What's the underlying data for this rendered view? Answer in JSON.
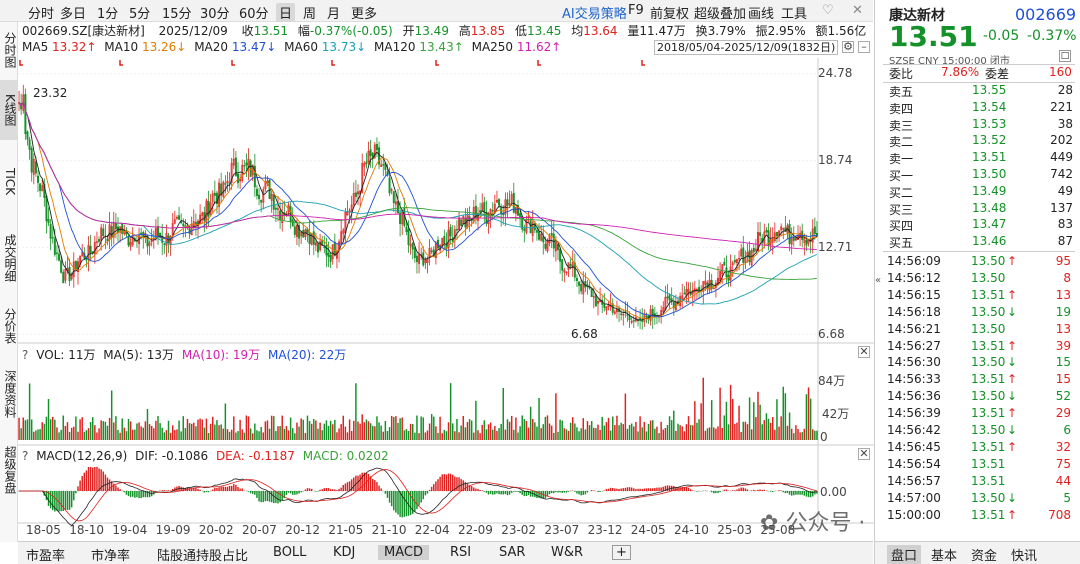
{
  "toolbar": {
    "items": [
      "分时",
      "多日",
      "1分",
      "5分",
      "15分",
      "30分",
      "60分",
      "日",
      "周",
      "月",
      "更多"
    ],
    "active": "日",
    "ai": "AI交易策略",
    "f9": "F9",
    "fuquan": "前复权",
    "overlay": "超级叠加",
    "drawline": "画线",
    "tools": "工具",
    "heart_icon": "heart-icon",
    "close_icon": "close-icon"
  },
  "vtabs": [
    "分时图",
    "K线图",
    "TICK",
    "成交明细",
    "分价表",
    "深度资料",
    "超级复盘"
  ],
  "info": {
    "code_name": "002669.SZ[康达新材]",
    "date": "2025/12/09",
    "close_label": "收",
    "close": "13.51",
    "change_label": "幅",
    "change": "-0.37%(-0.05)",
    "open_label": "开",
    "open": "13.49",
    "high_label": "高",
    "high": "13.85",
    "low_label": "低",
    "low": "13.45",
    "avg_label": "均",
    "avg": "13.64",
    "vol_label": "量",
    "vol": "11.47万",
    "turnover_label": "换",
    "turnover": "3.79%",
    "amp_label": "振",
    "amp": "2.95%",
    "amount_label": "额",
    "amount": "1.56亿"
  },
  "ma": {
    "ma5_label": "MA5",
    "ma5": "13.32↑",
    "ma10_label": "MA10",
    "ma10": "13.26↓",
    "ma20_label": "MA20",
    "ma20": "13.47↓",
    "ma60_label": "MA60",
    "ma60": "13.73↓",
    "ma120_label": "MA120",
    "ma120": "13.43↑",
    "ma250_label": "MA250",
    "ma250": "11.62↑",
    "range": "2018/05/04-2025/12/09(1832日)"
  },
  "price_axis": [
    "24.78",
    "18.74",
    "12.71",
    "6.68"
  ],
  "annotations": {
    "high": "23.32",
    "low": "6.68"
  },
  "vol": {
    "label": "VOL: 11万",
    "ma5": "MA(5): 13万",
    "ma10": "MA(10): 19万",
    "ma20": "MA(20): 22万",
    "axis": [
      "84万",
      "42万",
      "0"
    ]
  },
  "macd": {
    "label": "MACD(12,26,9)",
    "dif": "DIF: -0.1086",
    "dea": "DEA: -0.1187",
    "macd": "MACD: 0.0202",
    "axis": "0.00"
  },
  "x_axis": [
    "18-05",
    "18-10",
    "19-04",
    "19-09",
    "20-02",
    "20-07",
    "20-12",
    "21-05",
    "21-10",
    "22-04",
    "22-09",
    "23-02",
    "23-07",
    "23-12",
    "24-05",
    "24-10",
    "25-03",
    "25-08"
  ],
  "bottom_tabs": [
    "市盈率",
    "市净率",
    "陆股通持股占比",
    "BOLL",
    "KDJ",
    "MACD",
    "RSI",
    "SAR",
    "W&R",
    "+"
  ],
  "bottom_active": "MACD",
  "right": {
    "name": "康达新材",
    "code": "002669",
    "price": "13.51",
    "change": "-0.05",
    "pct": "-0.37%",
    "market": "SZSE  CNY  15:00:00  闭市",
    "weibi_label": "委比",
    "weibi": "7.86%",
    "weicha_label": "委差",
    "weicha": "160",
    "asks": [
      {
        "label": "卖五",
        "price": "13.55",
        "vol": "28"
      },
      {
        "label": "卖四",
        "price": "13.54",
        "vol": "221"
      },
      {
        "label": "卖三",
        "price": "13.53",
        "vol": "38"
      },
      {
        "label": "卖二",
        "price": "13.52",
        "vol": "202"
      },
      {
        "label": "卖一",
        "price": "13.51",
        "vol": "449"
      }
    ],
    "bids": [
      {
        "label": "买一",
        "price": "13.50",
        "vol": "742"
      },
      {
        "label": "买二",
        "price": "13.49",
        "vol": "49"
      },
      {
        "label": "买三",
        "price": "13.48",
        "vol": "137"
      },
      {
        "label": "买四",
        "price": "13.47",
        "vol": "83"
      },
      {
        "label": "买五",
        "price": "13.46",
        "vol": "87"
      }
    ],
    "ticks": [
      {
        "time": "14:56:09",
        "price": "13.50",
        "dir": "up",
        "vol": "95"
      },
      {
        "time": "14:56:12",
        "price": "13.50",
        "dir": "",
        "vol": "8"
      },
      {
        "time": "14:56:15",
        "price": "13.51",
        "dir": "up",
        "vol": "13"
      },
      {
        "time": "14:56:18",
        "price": "13.50",
        "dir": "down",
        "vol": "19"
      },
      {
        "time": "14:56:21",
        "price": "13.50",
        "dir": "",
        "vol": "13"
      },
      {
        "time": "14:56:27",
        "price": "13.51",
        "dir": "up",
        "vol": "39"
      },
      {
        "time": "14:56:30",
        "price": "13.50",
        "dir": "down",
        "vol": "15"
      },
      {
        "time": "14:56:33",
        "price": "13.51",
        "dir": "up",
        "vol": "15"
      },
      {
        "time": "14:56:36",
        "price": "13.50",
        "dir": "down",
        "vol": "52"
      },
      {
        "time": "14:56:39",
        "price": "13.51",
        "dir": "up",
        "vol": "29"
      },
      {
        "time": "14:56:42",
        "price": "13.50",
        "dir": "down",
        "vol": "6"
      },
      {
        "time": "14:56:45",
        "price": "13.51",
        "dir": "up",
        "vol": "32"
      },
      {
        "time": "14:56:54",
        "price": "13.51",
        "dir": "",
        "vol": "75"
      },
      {
        "time": "14:56:57",
        "price": "13.51",
        "dir": "",
        "vol": "44"
      },
      {
        "time": "14:57:00",
        "price": "13.50",
        "dir": "down",
        "vol": "5"
      },
      {
        "time": "15:00:00",
        "price": "13.51",
        "dir": "up",
        "vol": "708"
      }
    ],
    "tabs": [
      "盘口",
      "基本",
      "资金",
      "快讯"
    ],
    "active_tab": "盘口"
  },
  "watermark": "公众号 · 陇上税语",
  "colors": {
    "up": "#e0201e",
    "down": "#149128",
    "accent": "#1f4fd6"
  },
  "chart_data": {
    "type": "line",
    "title": "002669.SZ[康达新材] 日K",
    "x": [
      "18-05",
      "18-10",
      "19-04",
      "19-09",
      "20-02",
      "20-07",
      "20-12",
      "21-05",
      "21-10",
      "22-04",
      "22-09",
      "23-02",
      "23-07",
      "23-12",
      "24-05",
      "24-10",
      "25-03",
      "25-08",
      "25-12"
    ],
    "series": [
      {
        "name": "收盘",
        "values": [
          22.5,
          10.5,
          14.0,
          13.2,
          14.5,
          18.5,
          15.2,
          12.0,
          19.5,
          11.5,
          14.5,
          16.0,
          12.8,
          9.0,
          7.5,
          9.5,
          11.0,
          14.0,
          13.51
        ]
      }
    ],
    "ylim": [
      6.68,
      24.78
    ],
    "xlabel": "",
    "ylabel": ""
  }
}
